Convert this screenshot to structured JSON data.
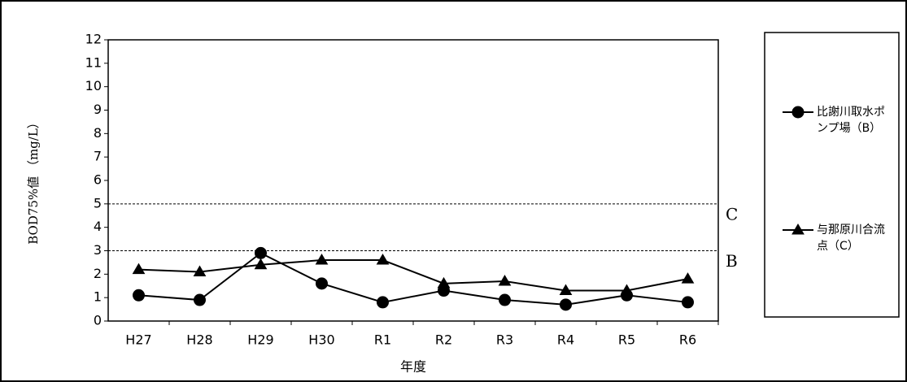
{
  "chart_data": {
    "type": "line",
    "y_label": "BOD75%値 （mg/L）",
    "x_label": "年度",
    "categories": [
      "H27",
      "H28",
      "H29",
      "H30",
      "R1",
      "R2",
      "R3",
      "R4",
      "R5",
      "R6"
    ],
    "series": [
      {
        "name": "比謝川取水ポンプ場（B）",
        "color": "#000000",
        "marker": "circle",
        "values": [
          1.1,
          0.9,
          2.9,
          1.6,
          0.8,
          1.3,
          0.9,
          0.7,
          1.1,
          0.8
        ]
      },
      {
        "name": "与那原川合流点（C）",
        "color": "#000000",
        "marker": "triangle",
        "values": [
          2.2,
          2.1,
          2.4,
          2.6,
          2.6,
          1.6,
          1.7,
          1.3,
          1.3,
          1.8
        ]
      }
    ],
    "reference_lines": [
      {
        "value": 5,
        "label": "C"
      },
      {
        "value": 3,
        "label": "B"
      }
    ],
    "ylim": [
      0,
      12
    ],
    "yticks": [
      0,
      1,
      2,
      3,
      4,
      5,
      6,
      7,
      8,
      9,
      10,
      11,
      12
    ]
  }
}
